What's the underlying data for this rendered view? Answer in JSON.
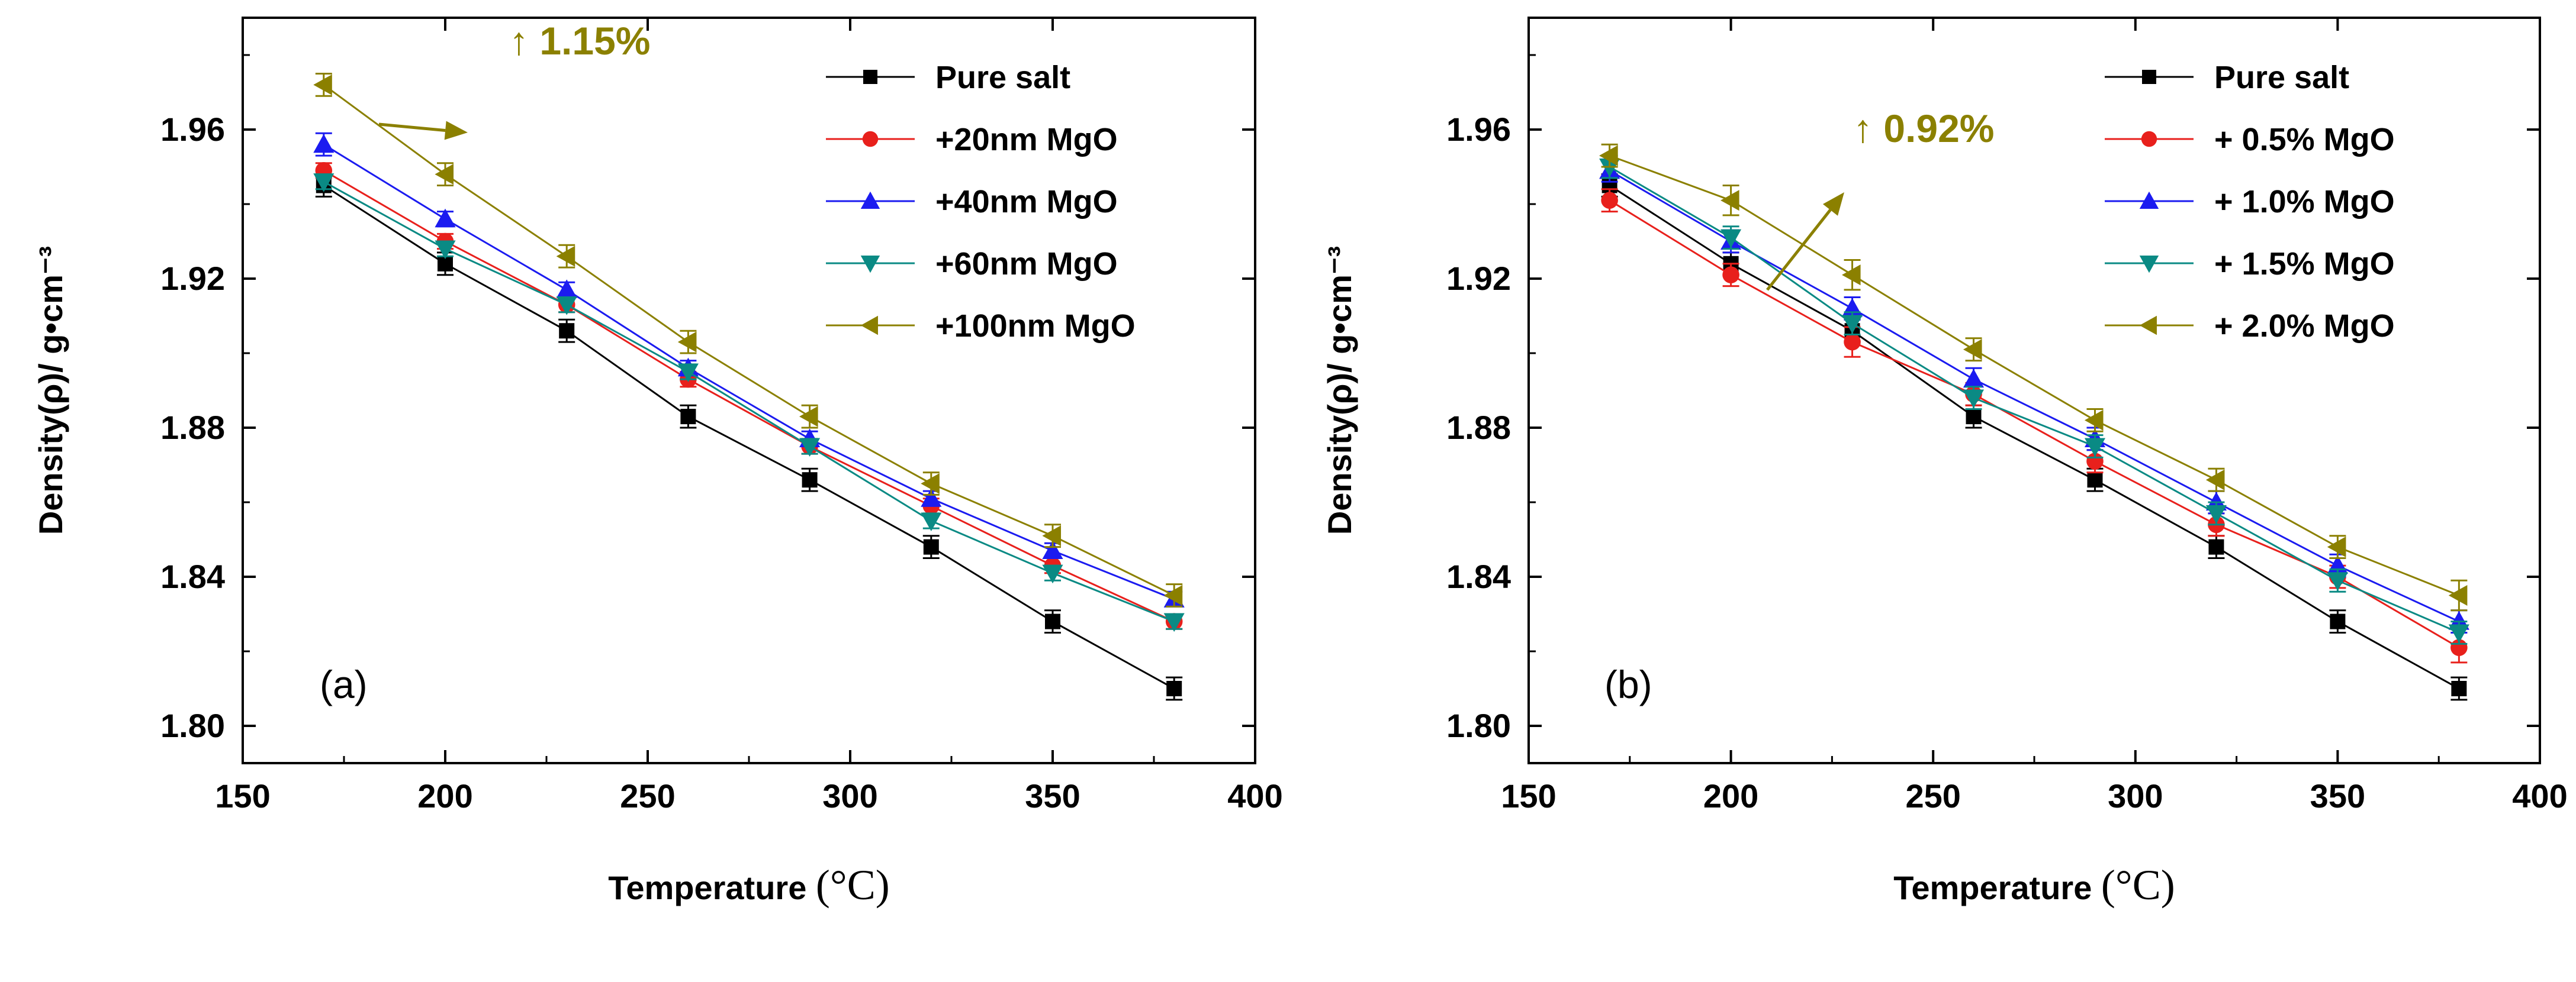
{
  "chart_data": [
    {
      "type": "line",
      "panel_label": "(a)",
      "xlabel": "Temperature",
      "xunit": "(°C)",
      "ylabel": "Density(ρ)/ g•cm⁻³",
      "xlim": [
        150,
        400
      ],
      "ylim": [
        1.79,
        1.99
      ],
      "xticks": [
        "150",
        "200",
        "250",
        "300",
        "350",
        "400"
      ],
      "yticks": [
        "1.80",
        "1.84",
        "1.88",
        "1.92",
        "1.96"
      ],
      "legend_position": "top-right",
      "annotation": {
        "text": "↑ 1.15%",
        "color": "#8b8000"
      },
      "x": [
        170,
        200,
        230,
        260,
        290,
        320,
        350,
        380
      ],
      "series": [
        {
          "name": "Pure salt",
          "color": "#000000",
          "marker": "square",
          "values": [
            1.945,
            1.924,
            1.906,
            1.883,
            1.866,
            1.848,
            1.828,
            1.81
          ],
          "errors": [
            0.003,
            0.003,
            0.003,
            0.003,
            0.003,
            0.003,
            0.003,
            0.003
          ]
        },
        {
          "name": "+20nm MgO",
          "color": "#e8201c",
          "marker": "circle",
          "values": [
            1.949,
            1.93,
            1.913,
            1.893,
            1.875,
            1.859,
            1.843,
            1.828
          ],
          "errors": [
            0.002,
            0.002,
            0.002,
            0.002,
            0.002,
            0.002,
            0.002,
            0.002
          ]
        },
        {
          "name": "+40nm MgO",
          "color": "#1b1bf0",
          "marker": "triangle-up",
          "values": [
            1.956,
            1.936,
            1.917,
            1.896,
            1.877,
            1.861,
            1.847,
            1.834
          ],
          "errors": [
            0.003,
            0.002,
            0.002,
            0.002,
            0.002,
            0.002,
            0.002,
            0.002
          ]
        },
        {
          "name": "+60nm MgO",
          "color": "#0a8a84",
          "marker": "triangle-down",
          "values": [
            1.946,
            1.928,
            1.913,
            1.895,
            1.875,
            1.855,
            1.841,
            1.828
          ],
          "errors": [
            0.002,
            0.002,
            0.002,
            0.002,
            0.002,
            0.002,
            0.002,
            0.002
          ]
        },
        {
          "name": "+100nm MgO",
          "color": "#8b8000",
          "marker": "triangle-left",
          "values": [
            1.972,
            1.948,
            1.926,
            1.903,
            1.883,
            1.865,
            1.851,
            1.835
          ],
          "errors": [
            0.003,
            0.003,
            0.003,
            0.003,
            0.003,
            0.003,
            0.003,
            0.003
          ]
        }
      ]
    },
    {
      "type": "line",
      "panel_label": "(b)",
      "xlabel": "Temperature",
      "xunit": "(°C)",
      "ylabel": "Density(ρ)/ g•cm⁻³",
      "xlim": [
        150,
        400
      ],
      "ylim": [
        1.79,
        1.99
      ],
      "xticks": [
        "150",
        "200",
        "250",
        "300",
        "350",
        "400"
      ],
      "yticks": [
        "1.80",
        "1.84",
        "1.88",
        "1.92",
        "1.96"
      ],
      "legend_position": "top-right",
      "annotation": {
        "text": "↑ 0.92%",
        "color": "#8b8000"
      },
      "x": [
        170,
        200,
        230,
        260,
        290,
        320,
        350,
        380
      ],
      "series": [
        {
          "name": "Pure salt",
          "color": "#000000",
          "marker": "square",
          "values": [
            1.945,
            1.924,
            1.906,
            1.883,
            1.866,
            1.848,
            1.828,
            1.81
          ],
          "errors": [
            0.003,
            0.003,
            0.003,
            0.003,
            0.003,
            0.003,
            0.003,
            0.003
          ]
        },
        {
          "name": "+ 0.5% MgO",
          "color": "#e8201c",
          "marker": "circle",
          "values": [
            1.941,
            1.921,
            1.903,
            1.889,
            1.871,
            1.854,
            1.84,
            1.821
          ],
          "errors": [
            0.003,
            0.003,
            0.004,
            0.003,
            0.003,
            0.003,
            0.003,
            0.004
          ]
        },
        {
          "name": "+ 1.0% MgO",
          "color": "#1b1bf0",
          "marker": "triangle-up",
          "values": [
            1.949,
            1.93,
            1.912,
            1.893,
            1.877,
            1.86,
            1.843,
            1.828
          ],
          "errors": [
            0.003,
            0.003,
            0.003,
            0.003,
            0.003,
            0.003,
            0.003,
            0.003
          ]
        },
        {
          "name": "+ 1.5% MgO",
          "color": "#0a8a84",
          "marker": "triangle-down",
          "values": [
            1.95,
            1.931,
            1.908,
            1.888,
            1.875,
            1.857,
            1.839,
            1.825
          ],
          "errors": [
            0.003,
            0.003,
            0.003,
            0.003,
            0.003,
            0.003,
            0.003,
            0.003
          ]
        },
        {
          "name": "+ 2.0% MgO",
          "color": "#8b8000",
          "marker": "triangle-left",
          "values": [
            1.953,
            1.941,
            1.921,
            1.901,
            1.882,
            1.866,
            1.848,
            1.835
          ],
          "errors": [
            0.003,
            0.004,
            0.004,
            0.003,
            0.003,
            0.003,
            0.003,
            0.004
          ]
        }
      ]
    }
  ]
}
